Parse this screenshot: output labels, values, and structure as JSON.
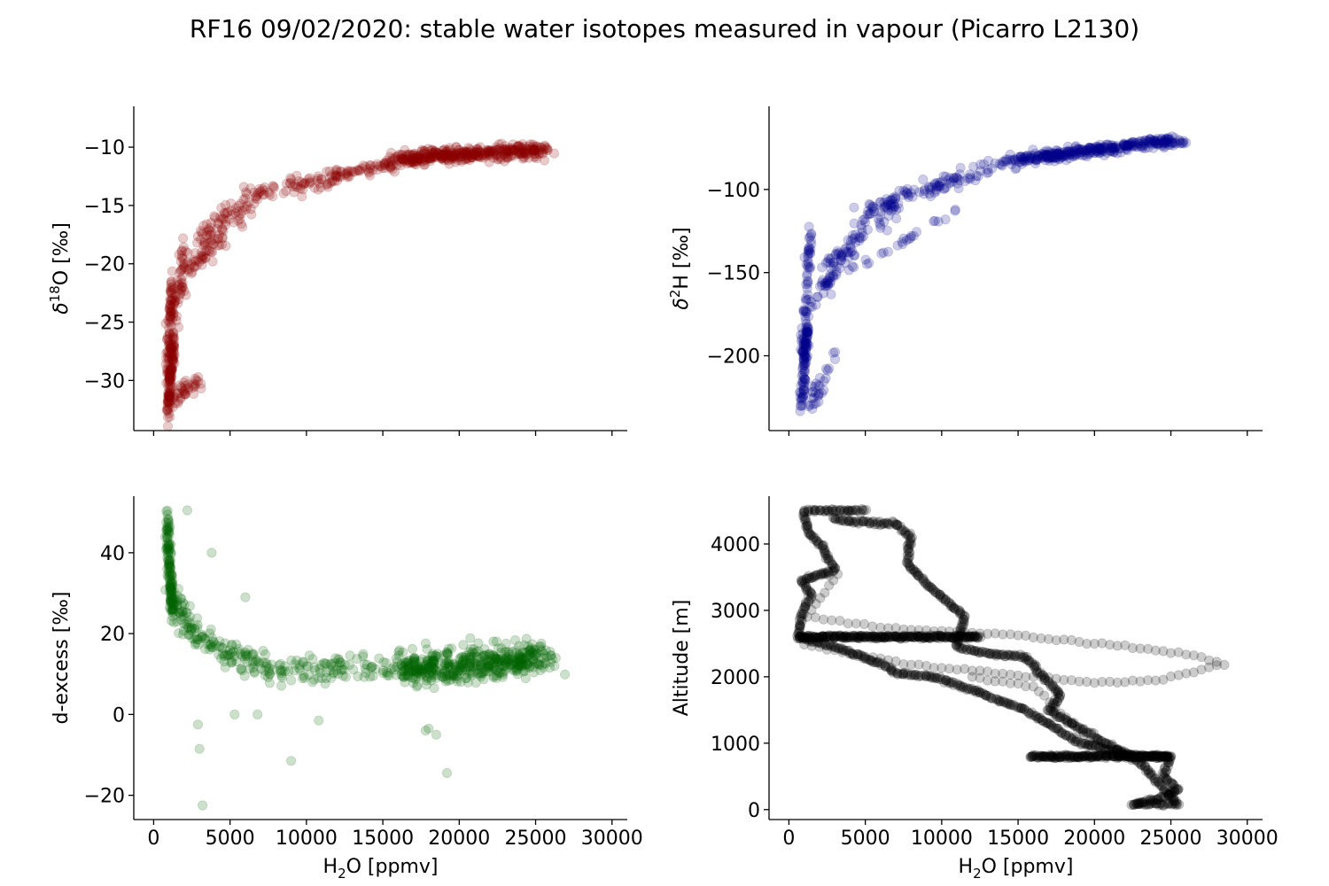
{
  "figure": {
    "title": "RF16 09/02/2020: stable water isotopes measured in vapour (Picarro L2130)"
  },
  "chart_data": [
    {
      "id": "d18o",
      "type": "scatter",
      "title": "",
      "xlabel": "H2O [ppmv]",
      "ylabel": "δ18O [‰]",
      "ylabel_parts": {
        "base": "δ",
        "sup": "18",
        "rest": "O [‰]"
      },
      "xlim": [
        -1300,
        31000
      ],
      "ylim": [
        -34.3,
        -6.5
      ],
      "xticks": [
        0,
        5000,
        10000,
        15000,
        20000,
        25000,
        30000
      ],
      "xtick_labels_visible": false,
      "yticks": [
        -30,
        -25,
        -20,
        -15,
        -10
      ],
      "ytick_labels": [
        "−30",
        "−25",
        "−20",
        "−15",
        "−10"
      ],
      "color": "#8b0000",
      "alpha": 0.2,
      "trend_segments": [
        {
          "x": [
            900,
            1300
          ],
          "y": [
            -32.8,
            -26.5
          ],
          "n": 120,
          "spread": [
            150,
            1.2
          ]
        },
        {
          "x": [
            900,
            1200
          ],
          "y": [
            -29,
            -22
          ],
          "n": 60,
          "spread": [
            120,
            1.0
          ]
        },
        {
          "x": [
            1200,
            3000
          ],
          "y": [
            -32,
            -30
          ],
          "n": 40,
          "spread": [
            300,
            0.8
          ]
        },
        {
          "x": [
            1000,
            2000
          ],
          "y": [
            -26,
            -19
          ],
          "n": 50,
          "spread": [
            250,
            1.5
          ]
        },
        {
          "x": [
            1500,
            4500
          ],
          "y": [
            -22,
            -17
          ],
          "n": 70,
          "spread": [
            500,
            1.6
          ]
        },
        {
          "x": [
            3000,
            7000
          ],
          "y": [
            -18,
            -14
          ],
          "n": 70,
          "spread": [
            600,
            1.2
          ]
        },
        {
          "x": [
            7000,
            12000
          ],
          "y": [
            -14,
            -12.5
          ],
          "n": 70,
          "spread": [
            800,
            0.8
          ]
        },
        {
          "x": [
            12000,
            17000
          ],
          "y": [
            -12.3,
            -11
          ],
          "n": 70,
          "spread": [
            900,
            0.5
          ]
        },
        {
          "x": [
            16000,
            25500
          ],
          "y": [
            -11,
            -10.2
          ],
          "n": 380,
          "spread": [
            900,
            0.6
          ]
        }
      ]
    },
    {
      "id": "d2h",
      "type": "scatter",
      "title": "",
      "xlabel": "H2O [ppmv]",
      "ylabel": "δ2H [‰]",
      "ylabel_parts": {
        "base": "δ",
        "sup": "2",
        "rest": "H [‰]"
      },
      "xlim": [
        -1300,
        31000
      ],
      "ylim": [
        -245,
        -50
      ],
      "xticks": [
        0,
        5000,
        10000,
        15000,
        20000,
        25000,
        30000
      ],
      "xtick_labels_visible": false,
      "yticks": [
        -200,
        -150,
        -100
      ],
      "ytick_labels": [
        "−200",
        "−150",
        "−100"
      ],
      "color": "#00008b",
      "alpha": 0.2,
      "trend_segments": [
        {
          "x": [
            800,
            1200
          ],
          "y": [
            -230,
            -185
          ],
          "n": 90,
          "spread": [
            150,
            6
          ]
        },
        {
          "x": [
            900,
            1400
          ],
          "y": [
            -200,
            -125
          ],
          "n": 70,
          "spread": [
            200,
            6
          ]
        },
        {
          "x": [
            1300,
            3000
          ],
          "y": [
            -235,
            -200
          ],
          "n": 30,
          "spread": [
            300,
            5
          ]
        },
        {
          "x": [
            1500,
            5000
          ],
          "y": [
            -170,
            -120
          ],
          "n": 60,
          "spread": [
            400,
            8
          ]
        },
        {
          "x": [
            2500,
            7000
          ],
          "y": [
            -145,
            -110
          ],
          "n": 50,
          "spread": [
            500,
            6
          ]
        },
        {
          "x": [
            5000,
            10000
          ],
          "y": [
            -115,
            -95
          ],
          "n": 60,
          "spread": [
            600,
            5
          ]
        },
        {
          "x": [
            9000,
            15000
          ],
          "y": [
            -100,
            -82
          ],
          "n": 60,
          "spread": [
            700,
            4
          ]
        },
        {
          "x": [
            15000,
            25500
          ],
          "y": [
            -82,
            -70
          ],
          "n": 350,
          "spread": [
            900,
            3
          ]
        },
        {
          "x": [
            4000,
            11000
          ],
          "y": [
            -150,
            -112
          ],
          "n": 25,
          "spread": [
            200,
            2
          ]
        }
      ]
    },
    {
      "id": "dexcess",
      "type": "scatter",
      "title": "",
      "xlabel": "H2O [ppmv]",
      "xlabel_parts": {
        "base": "H",
        "sub": "2",
        "rest": "O [ppmv]"
      },
      "ylabel": "d-excess [‰]",
      "xlim": [
        -1300,
        31000
      ],
      "ylim": [
        -26,
        54
      ],
      "xticks": [
        0,
        5000,
        10000,
        15000,
        20000,
        25000,
        30000
      ],
      "xtick_labels": [
        "0",
        "5000",
        "10000",
        "15000",
        "20000",
        "25000",
        "30000"
      ],
      "yticks": [
        -20,
        0,
        20,
        40
      ],
      "ytick_labels": [
        "−20",
        "0",
        "20",
        "40"
      ],
      "color": "#006400",
      "alpha": 0.2,
      "trend_segments": [
        {
          "x": [
            900,
            1200
          ],
          "y": [
            48,
            25
          ],
          "n": 130,
          "spread": [
            150,
            3
          ]
        },
        {
          "x": [
            1000,
            3000
          ],
          "y": [
            30,
            18
          ],
          "n": 70,
          "spread": [
            500,
            4
          ]
        },
        {
          "x": [
            3000,
            8000
          ],
          "y": [
            18,
            11
          ],
          "n": 90,
          "spread": [
            900,
            3.5
          ]
        },
        {
          "x": [
            8000,
            15000
          ],
          "y": [
            11,
            12
          ],
          "n": 90,
          "spread": [
            1200,
            3.5
          ]
        },
        {
          "x": [
            16000,
            25500
          ],
          "y": [
            11,
            14
          ],
          "n": 500,
          "spread": [
            1400,
            3.8
          ]
        }
      ],
      "outliers": [
        [
          2200,
          50.5
        ],
        [
          3800,
          40
        ],
        [
          6000,
          29
        ],
        [
          2900,
          -2.5
        ],
        [
          3000,
          -8.5
        ],
        [
          3200,
          -22.5
        ],
        [
          9000,
          -11.5
        ],
        [
          19200,
          -14.5
        ],
        [
          10800,
          -1.5
        ],
        [
          5300,
          0
        ],
        [
          6800,
          0
        ],
        [
          18500,
          -5
        ],
        [
          18000,
          -3.5
        ],
        [
          17800,
          -4
        ]
      ]
    },
    {
      "id": "altitude",
      "type": "scatter",
      "title": "",
      "xlabel": "H2O [ppmv]",
      "xlabel_parts": {
        "base": "H",
        "sub": "2",
        "rest": "O [ppmv]"
      },
      "ylabel": "Altitude [m]",
      "xlim": [
        -1300,
        31000
      ],
      "ylim": [
        -150,
        4720
      ],
      "xticks": [
        0,
        5000,
        10000,
        15000,
        20000,
        25000,
        30000
      ],
      "xtick_labels": [
        "0",
        "5000",
        "10000",
        "15000",
        "20000",
        "25000",
        "30000"
      ],
      "yticks": [
        0,
        1000,
        2000,
        3000,
        4000
      ],
      "ytick_labels": [
        "0",
        "1000",
        "2000",
        "3000",
        "4000"
      ],
      "color": "#000000",
      "alpha": 0.2,
      "path": [
        [
          5000,
          4500
        ],
        [
          1000,
          4500
        ],
        [
          1200,
          4200
        ],
        [
          2200,
          3950
        ],
        [
          3000,
          3600
        ],
        [
          800,
          3450
        ],
        [
          1500,
          3250
        ],
        [
          900,
          3000
        ],
        [
          600,
          2600
        ],
        [
          12500,
          2600
        ],
        [
          600,
          2600
        ],
        [
          3000,
          2450
        ],
        [
          6500,
          2150
        ],
        [
          7000,
          2050
        ],
        [
          9500,
          2000
        ],
        [
          12000,
          1800
        ],
        [
          15500,
          1500
        ],
        [
          19000,
          1000
        ],
        [
          23000,
          800
        ],
        [
          25000,
          800
        ],
        [
          15800,
          800
        ],
        [
          25000,
          800
        ],
        [
          24500,
          500
        ],
        [
          25500,
          300
        ],
        [
          24000,
          150
        ],
        [
          22500,
          80
        ],
        [
          25500,
          80
        ],
        [
          23000,
          700
        ],
        [
          17000,
          1500
        ],
        [
          17800,
          1700
        ],
        [
          15500,
          2300
        ],
        [
          13000,
          2350
        ],
        [
          11000,
          2450
        ],
        [
          11500,
          2900
        ],
        [
          9000,
          3400
        ],
        [
          7800,
          3700
        ],
        [
          7800,
          3900
        ],
        [
          8000,
          4100
        ],
        [
          7000,
          4300
        ],
        [
          3500,
          4350
        ],
        [
          2800,
          4400
        ]
      ],
      "sparse_path": [
        [
          1500,
          3500
        ],
        [
          3200,
          3550
        ],
        [
          1200,
          2900
        ],
        [
          6000,
          2750
        ],
        [
          9000,
          2700
        ],
        [
          14000,
          2650
        ],
        [
          18000,
          2550
        ],
        [
          22000,
          2450
        ],
        [
          24000,
          2400
        ],
        [
          27000,
          2300
        ],
        [
          29000,
          2150
        ],
        [
          1000,
          2500
        ],
        [
          4000,
          2350
        ],
        [
          9000,
          2150
        ],
        [
          14000,
          2050
        ],
        [
          18000,
          1950
        ],
        [
          21000,
          1900
        ],
        [
          24000,
          1950
        ],
        [
          27000,
          2100
        ],
        [
          28500,
          2200
        ],
        [
          12000,
          2000
        ],
        [
          16000,
          1850
        ],
        [
          18500,
          1300
        ],
        [
          20500,
          850
        ]
      ]
    }
  ]
}
